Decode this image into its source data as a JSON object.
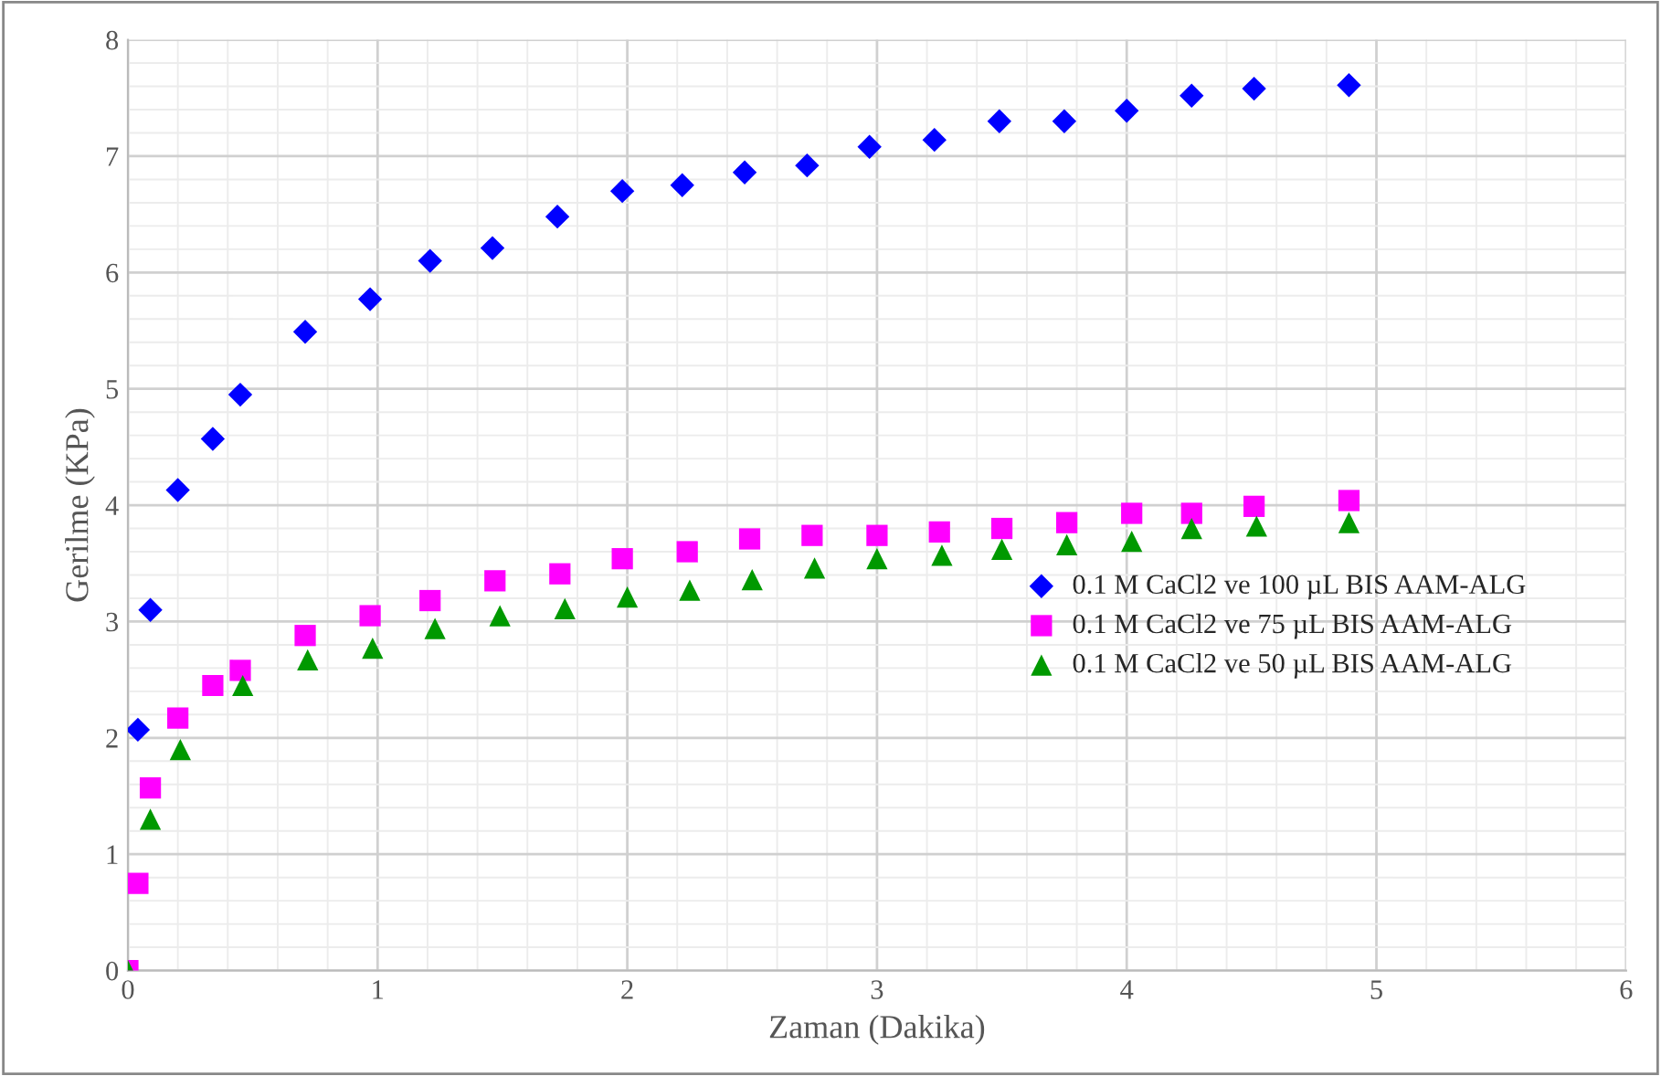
{
  "chart_data": {
    "type": "scatter",
    "xlabel": "Zaman (Dakika)",
    "ylabel": "Gerilme (KPa)",
    "xlim": [
      0,
      6
    ],
    "xticks": [
      0,
      1,
      2,
      3,
      4,
      5,
      6
    ],
    "ylim": [
      0,
      8
    ],
    "yticks": [
      0,
      1,
      2,
      3,
      4,
      5,
      6,
      7,
      8
    ],
    "grid": true,
    "legend": "right",
    "series": [
      {
        "name": "0.1 M CaCl2 ve 100 µL BIS AAM-ALG",
        "color": "#0000ff",
        "marker": "diamond",
        "x": [
          0.04,
          0.09,
          0.2,
          0.34,
          0.45,
          0.71,
          0.97,
          1.21,
          1.46,
          1.72,
          1.98,
          2.22,
          2.47,
          2.72,
          2.97,
          3.23,
          3.49,
          3.75,
          4.0,
          4.26,
          4.51,
          4.89
        ],
        "values": [
          2.07,
          3.1,
          4.13,
          4.57,
          4.95,
          5.49,
          5.77,
          6.1,
          6.21,
          6.48,
          6.7,
          6.75,
          6.86,
          6.92,
          7.08,
          7.14,
          7.3,
          7.3,
          7.39,
          7.52,
          7.58,
          7.61
        ]
      },
      {
        "name": "0.1 M CaCl2 ve 75 µL BIS AAM-ALG",
        "color": "#ff00ff",
        "marker": "square",
        "x": [
          0,
          0.04,
          0.09,
          0.2,
          0.34,
          0.45,
          0.71,
          0.97,
          1.21,
          1.47,
          1.73,
          1.98,
          2.24,
          2.49,
          2.74,
          3.0,
          3.25,
          3.5,
          3.76,
          4.02,
          4.26,
          4.51,
          4.89
        ],
        "values": [
          0,
          0.75,
          1.57,
          2.17,
          2.45,
          2.58,
          2.88,
          3.05,
          3.18,
          3.35,
          3.41,
          3.54,
          3.6,
          3.71,
          3.74,
          3.74,
          3.77,
          3.8,
          3.85,
          3.93,
          3.93,
          3.99,
          4.04
        ]
      },
      {
        "name": "0.1 M CaCl2 ve 50 µL BIS AAM-ALG",
        "color": "#009900",
        "marker": "triangle",
        "x": [
          0,
          0.09,
          0.21,
          0.46,
          0.72,
          0.98,
          1.23,
          1.49,
          1.75,
          2.0,
          2.25,
          2.5,
          2.75,
          3.0,
          3.26,
          3.5,
          3.76,
          4.02,
          4.26,
          4.52,
          4.89
        ],
        "values": [
          0,
          1.3,
          1.9,
          2.45,
          2.67,
          2.77,
          2.94,
          3.05,
          3.11,
          3.21,
          3.27,
          3.36,
          3.46,
          3.54,
          3.57,
          3.62,
          3.66,
          3.69,
          3.8,
          3.82,
          3.85
        ]
      }
    ]
  }
}
